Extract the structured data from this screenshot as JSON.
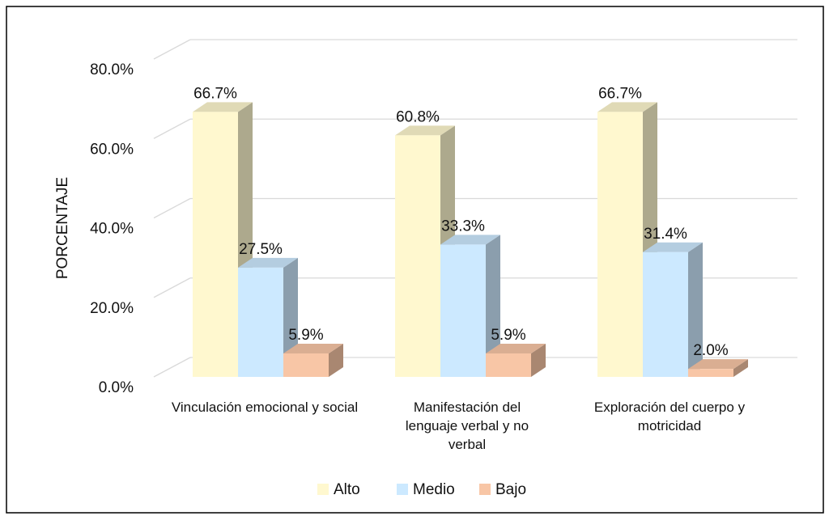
{
  "chart_data": {
    "type": "bar3d",
    "ylabel": "PORCENTAJE",
    "categories": [
      "Vinculación emocional y social",
      "Manifestación del lenguaje verbal y no verbal",
      "Exploración del cuerpo y motricidad"
    ],
    "series": [
      {
        "name": "Alto",
        "color": "#fff8cf",
        "values": [
          66.7,
          60.8,
          66.7
        ],
        "value_labels": [
          "66.7%",
          "60.8%",
          "66.7%"
        ]
      },
      {
        "name": "Medio",
        "color": "#cce9ff",
        "values": [
          27.5,
          33.3,
          31.4
        ],
        "value_labels": [
          "27.5%",
          "33.3%",
          "31.4%"
        ]
      },
      {
        "name": "Bajo",
        "color": "#f8c6a6",
        "values": [
          5.9,
          5.9,
          2.0
        ],
        "value_labels": [
          "5.9%",
          "5.9%",
          "2.0%"
        ]
      }
    ],
    "ylim": [
      0,
      80
    ],
    "yticks": [
      {
        "value": 0,
        "label": "0.0%"
      },
      {
        "value": 20,
        "label": "20.0%"
      },
      {
        "value": 40,
        "label": "40.0%"
      },
      {
        "value": 60,
        "label": "60.0%"
      },
      {
        "value": 80,
        "label": "80.0%"
      }
    ],
    "grid": true,
    "legend": "bottom"
  }
}
